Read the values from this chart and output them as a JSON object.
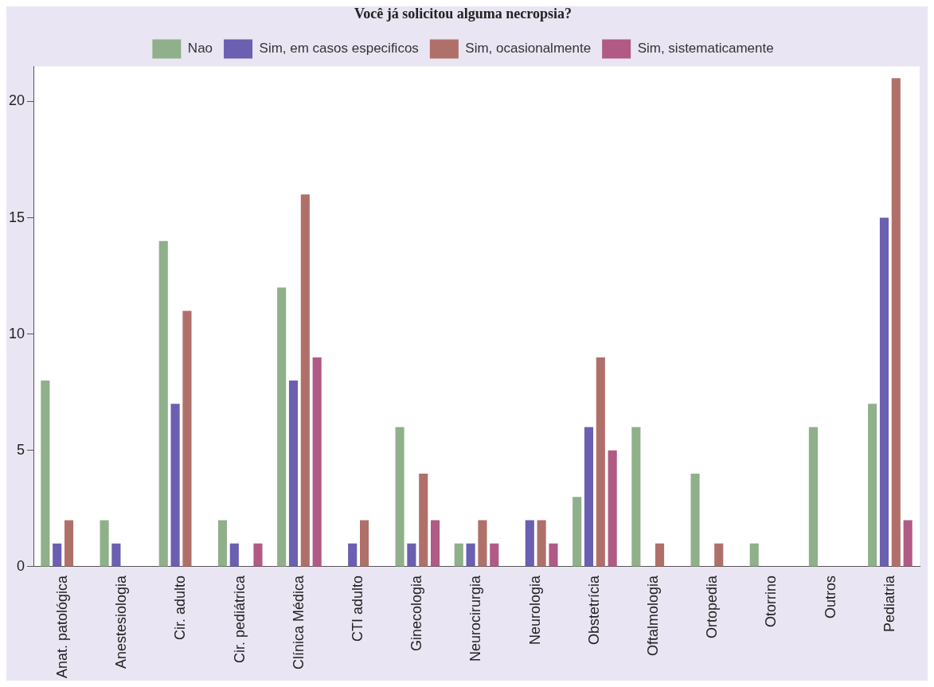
{
  "chart_data": {
    "type": "bar",
    "title": "Você já solicitou alguma necropsia?",
    "categories": [
      "Anat. patológica",
      "Anestesiologia",
      "Cir. adulto",
      "Cir. pediátrica",
      "Clínica Médica",
      "CTI adulto",
      "Ginecologia",
      "Neurocirurgia",
      "Neurologia",
      "Obstetrícia",
      "Oftalmologia",
      "Ortopedia",
      "Otorrino",
      "Outros",
      "Pediatria"
    ],
    "series": [
      {
        "name": "Nao",
        "color": "#8fb08a",
        "values": [
          8,
          2,
          14,
          2,
          12,
          0,
          6,
          1,
          0,
          3,
          6,
          4,
          1,
          6,
          7
        ]
      },
      {
        "name": "Sim, em casos especificos",
        "color": "#6a5fb0",
        "values": [
          1,
          1,
          7,
          1,
          8,
          1,
          1,
          1,
          2,
          6,
          0,
          0,
          0,
          0,
          15
        ]
      },
      {
        "name": "Sim, ocasionalmente",
        "color": "#b0706a",
        "values": [
          2,
          0,
          11,
          0,
          16,
          2,
          4,
          2,
          2,
          9,
          1,
          1,
          0,
          0,
          21
        ]
      },
      {
        "name": "Sim, sistematicamente",
        "color": "#b05a85",
        "values": [
          0,
          0,
          0,
          1,
          9,
          0,
          2,
          1,
          1,
          5,
          0,
          0,
          0,
          0,
          2
        ]
      }
    ],
    "ylim": [
      0,
      21.5
    ],
    "yticks": [
      0,
      5,
      10,
      15,
      20
    ],
    "grid": false,
    "legend": "top"
  }
}
